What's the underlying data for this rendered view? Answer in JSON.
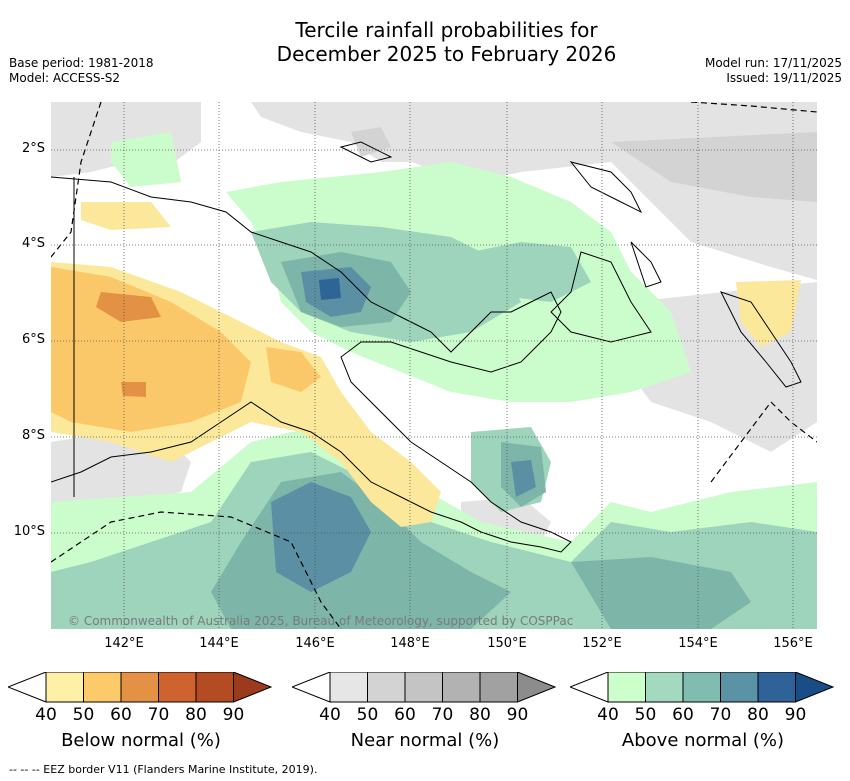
{
  "title_line1": "Tercile rainfall probabilities for",
  "title_line2": "December 2025 to February 2026",
  "meta_left": {
    "base_period": "Base period: 1981-2018",
    "model": "Model: ACCESS-S2"
  },
  "meta_right": {
    "model_run": "Model run: 17/11/2025",
    "issued": "Issued: 19/11/2025"
  },
  "map": {
    "lat_labels": [
      "2°S",
      "4°S",
      "6°S",
      "8°S",
      "10°S"
    ],
    "lon_labels": [
      "142°E",
      "144°E",
      "146°E",
      "148°E",
      "150°E",
      "152°E",
      "154°E",
      "156°E"
    ],
    "copyright": "© Commonwealth of Australia 2025, Bureau of Meteorology, supported by COSPPac"
  },
  "legends": [
    {
      "title": "Below normal (%)",
      "ticks": [
        "40",
        "50",
        "60",
        "70",
        "80",
        "90"
      ],
      "colors": [
        "#fff0a8",
        "#fdca6a",
        "#e39144",
        "#cf6330",
        "#b44b23",
        "#9c3a1e"
      ]
    },
    {
      "title": "Near normal (%)",
      "ticks": [
        "40",
        "50",
        "60",
        "70",
        "80",
        "90"
      ],
      "colors": [
        "#e6e6e6",
        "#d3d3d3",
        "#c4c4c4",
        "#b2b2b2",
        "#a1a1a1",
        "#8c8c8c"
      ]
    },
    {
      "title": "Above normal (%)",
      "ticks": [
        "40",
        "50",
        "60",
        "70",
        "80",
        "90"
      ],
      "colors": [
        "#ccffcc",
        "#a2d9bf",
        "#80bdb0",
        "#5b93a6",
        "#2e6298",
        "#1a4c86"
      ]
    }
  ],
  "footer": "--  --  -- EEZ border V11 (Flanders Marine Institute, 2019).",
  "colors": {
    "near40": "#e3e3e3",
    "near50": "#d3d3d3",
    "above40": "#cbfccb",
    "above50": "#9ed3bc",
    "above60": "#7eb5a9",
    "above70": "#5b90a4",
    "above80": "#2f6496",
    "below40": "#fbe89a",
    "below50": "#fbc869",
    "below60": "#e39144"
  }
}
